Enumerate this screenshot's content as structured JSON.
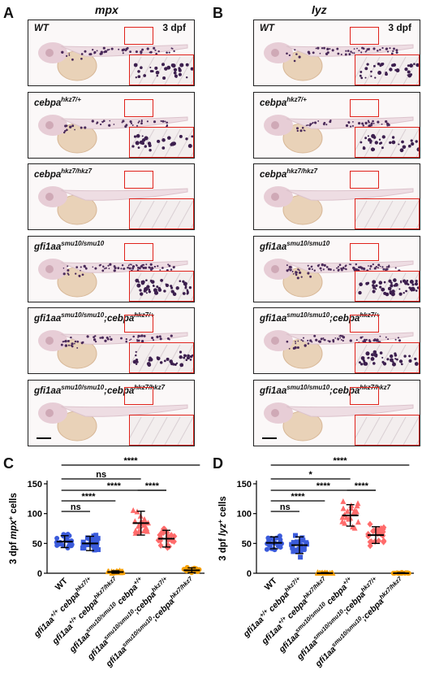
{
  "panels": {
    "A": "A",
    "B": "B",
    "C": "C",
    "D": "D"
  },
  "col_titles": {
    "left": "mpx",
    "right": "lyz"
  },
  "dpf_label": "3 dpf",
  "genotypes": [
    {
      "base": "WT",
      "sup": ""
    },
    {
      "base": "cebpa",
      "sup": "hkz7/+"
    },
    {
      "base": "cebpa",
      "sup": "hkz7/hkz7"
    },
    {
      "base": "gfi1aa",
      "sup": "smu10/smu10"
    },
    {
      "base": "gfi1aa",
      "sup": "smu10/smu10",
      "base2": ";cebpa",
      "sup2": "hkz7/+"
    },
    {
      "base": "gfi1aa",
      "sup": "smu10/smu10",
      "base2": ";cebpa",
      "sup2": "hkz7/hkz7"
    }
  ],
  "staining": {
    "mpx": [
      0.55,
      0.45,
      0.0,
      0.85,
      0.6,
      0.0
    ],
    "lyz": [
      0.6,
      0.55,
      0.0,
      1.0,
      0.7,
      0.0
    ]
  },
  "chart_data": [
    {
      "type": "scatter",
      "panel": "C",
      "ylabel_prefix": "3 dpf ",
      "ylabel_gene": "mpx",
      "ylabel_suffix": "+ cells",
      "ylim": [
        0,
        150
      ],
      "yticks": [
        0,
        50,
        100,
        150
      ],
      "categories": [
        "WT",
        "gfi1aa+/+ cebpahkz7/+",
        "gfi1aa+/+ cebpahkz7/hkz7",
        "gfi1aasmu10/smu10 cebpa+/+",
        "gfi1aasmu10/smu10;cebpahkz7/+",
        "gfi1aasmu10/smu10;cebpahkz7/hkz7"
      ],
      "mean": [
        53,
        50,
        2,
        84,
        58,
        5
      ],
      "sd": [
        10,
        12,
        2,
        20,
        14,
        4
      ],
      "colors": [
        "#3b5bdb",
        "#3b5bdb",
        "#f59f00",
        "#ff6b6b",
        "#ff6b6b",
        "#f59f00"
      ],
      "markers": [
        "circle",
        "square",
        "triangle",
        "triangle",
        "diamond",
        "circle"
      ],
      "brackets": [
        {
          "from": 0,
          "to": 5,
          "label": "****"
        },
        {
          "from": 0,
          "to": 3,
          "label": "ns"
        },
        {
          "from": 0,
          "to": 4,
          "label": "****"
        },
        {
          "from": 0,
          "to": 2,
          "label": "****"
        },
        {
          "from": 0,
          "to": 1,
          "label": "ns"
        },
        {
          "from": 3,
          "to": 4,
          "label": "****"
        }
      ]
    },
    {
      "type": "scatter",
      "panel": "D",
      "ylabel_prefix": "3 dpf ",
      "ylabel_gene": "lyz",
      "ylabel_suffix": "+ cells",
      "ylim": [
        0,
        150
      ],
      "yticks": [
        0,
        50,
        100,
        150
      ],
      "categories": [
        "WT",
        "gfi1aa+/+ cebpahkz7/+",
        "gfi1aa+/+ cebpahkz7/hkz7",
        "gfi1aasmu10/smu10 cebpa+/+",
        "gfi1aasmu10/smu10;cebpahkz7/+",
        "gfi1aasmu10/smu10;cebpahkz7/hkz7"
      ],
      "mean": [
        51,
        47,
        0,
        97,
        64,
        0
      ],
      "sd": [
        10,
        14,
        1,
        18,
        14,
        1
      ],
      "colors": [
        "#3b5bdb",
        "#3b5bdb",
        "#f59f00",
        "#ff6b6b",
        "#ff6b6b",
        "#f59f00"
      ],
      "markers": [
        "circle",
        "square",
        "triangle",
        "triangle",
        "diamond",
        "circle"
      ],
      "brackets": [
        {
          "from": 0,
          "to": 5,
          "label": "****"
        },
        {
          "from": 0,
          "to": 3,
          "label": "*"
        },
        {
          "from": 0,
          "to": 4,
          "label": "****"
        },
        {
          "from": 0,
          "to": 2,
          "label": "****"
        },
        {
          "from": 0,
          "to": 1,
          "label": "ns"
        },
        {
          "from": 3,
          "to": 4,
          "label": "****"
        }
      ]
    }
  ],
  "xlabels": [
    {
      "base": "WT",
      "sup": "",
      "base2": "",
      "sup2": ""
    },
    {
      "base": "gfi1aa",
      "sup": "+/+",
      "base2": " cebpa",
      "sup2": "hkz7/+"
    },
    {
      "base": "gfi1aa",
      "sup": "+/+",
      "base2": " cebpa",
      "sup2": "hkz7/hkz7"
    },
    {
      "base": "gfi1aa",
      "sup": "smu10/smu10",
      "base2": " cebpa",
      "sup2": "+/+"
    },
    {
      "base": "gfi1aa",
      "sup": "smu10/smu10",
      "base2": ";cebpa",
      "sup2": "hkz7/+"
    },
    {
      "base": "gfi1aa",
      "sup": "smu10/smu10",
      "base2": ";cebpa",
      "sup2": "hkz7/hkz7"
    }
  ]
}
